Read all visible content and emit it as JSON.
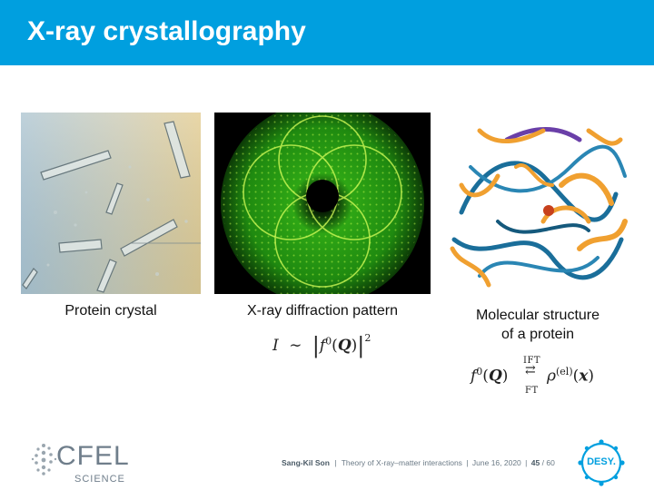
{
  "slide": {
    "title": "X-ray crystallography"
  },
  "panels": {
    "crystal": {
      "caption": "Protein crystal"
    },
    "diffraction": {
      "caption": "X-ray diffraction pattern"
    },
    "structure": {
      "caption_line1": "Molecular structure",
      "caption_line2": "of a protein"
    }
  },
  "equations": {
    "intensity": {
      "lhs": "I",
      "rel": "∼",
      "func": "f",
      "sup": "0",
      "arg": "Q",
      "power": "2"
    },
    "transform": {
      "func": "f",
      "sup": "0",
      "arg": "Q",
      "top": "IFT",
      "bottom": "FT",
      "rho": "ρ",
      "rho_sup": "(el)",
      "rho_arg": "x"
    }
  },
  "footer": {
    "author": "Sang-Kil Son",
    "talk": "Theory of X-ray–matter interactions",
    "date": "June 16, 2020",
    "page": "45",
    "total": "60"
  },
  "logos": {
    "cfel": "CFEL",
    "science": "SCIENCE",
    "desy": "DESY."
  },
  "colors": {
    "header": "#009fdf",
    "diffraction_green": "#39c21a",
    "ribbon_blue": "#1a6e9a",
    "helix_orange": "#f0a030"
  }
}
